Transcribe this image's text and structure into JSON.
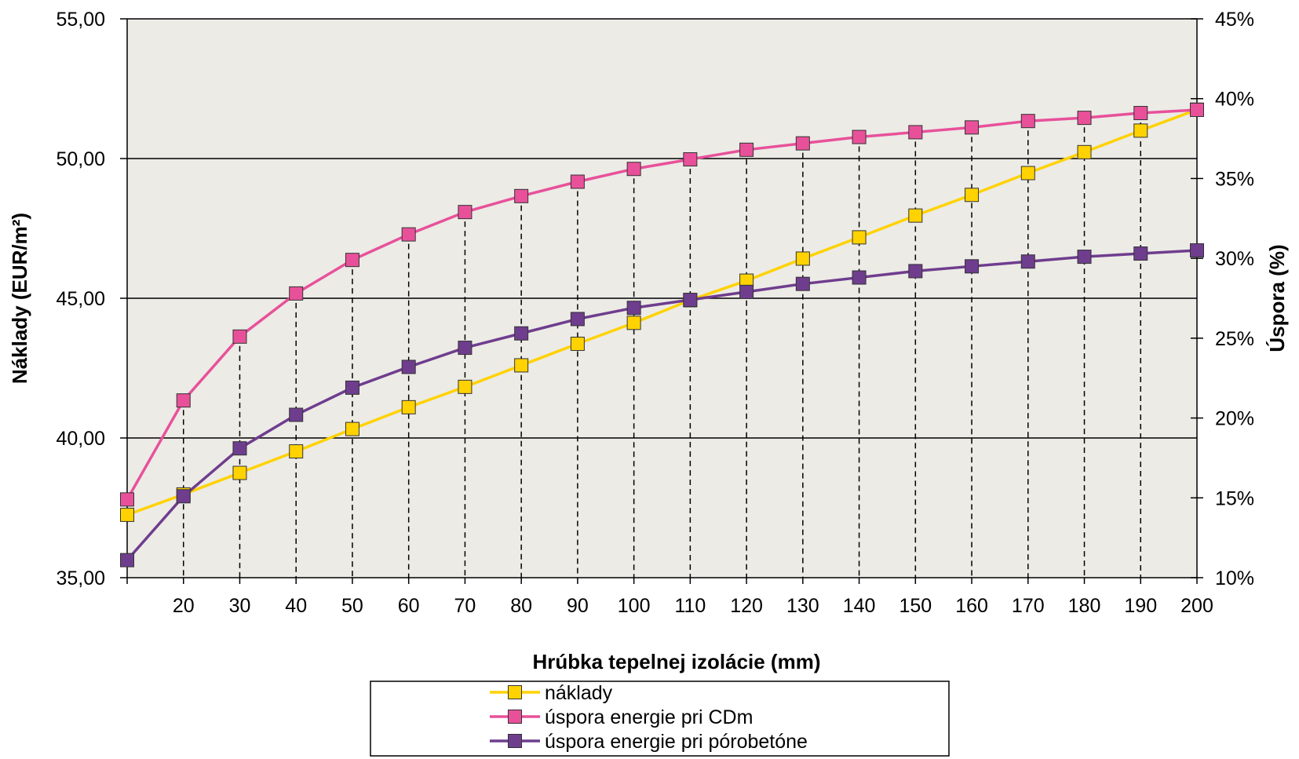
{
  "chart_data": {
    "type": "line",
    "xlabel": "Hrúbka tepelnej izolácie (mm)",
    "ylabel": "Náklady (EUR/m²)",
    "y2label": "Úspora (%)",
    "x": [
      10,
      20,
      30,
      40,
      50,
      60,
      70,
      80,
      90,
      100,
      110,
      120,
      130,
      140,
      150,
      160,
      170,
      180,
      190,
      200
    ],
    "x_tick_labels": [
      "20",
      "30",
      "40",
      "50",
      "60",
      "70",
      "80",
      "90",
      "100",
      "110",
      "120",
      "130",
      "140",
      "150",
      "160",
      "170",
      "180",
      "190",
      "200"
    ],
    "ylim": [
      35,
      55
    ],
    "y_ticks": [
      "35,00",
      "40,00",
      "45,00",
      "50,00",
      "55,00"
    ],
    "y_tick_values": [
      35,
      40,
      45,
      50,
      55
    ],
    "y2lim": [
      10,
      45
    ],
    "y2_ticks": [
      "10%",
      "15%",
      "20%",
      "25%",
      "30%",
      "35%",
      "40%",
      "45%"
    ],
    "y2_tick_values": [
      10,
      15,
      20,
      25,
      30,
      35,
      40,
      45
    ],
    "grid": "horizontal major lines, dashed vertical drop lines",
    "legend_position": "bottom",
    "series": [
      {
        "name": "náklady",
        "axis": "left",
        "color": "#FFD200",
        "values": [
          37.25,
          37.98,
          38.75,
          39.52,
          40.32,
          41.1,
          41.83,
          42.6,
          43.37,
          44.12,
          44.93,
          45.63,
          46.42,
          47.18,
          47.96,
          48.7,
          49.48,
          50.23,
          51.0,
          51.75
        ]
      },
      {
        "name": "úspora energie pri CDm",
        "axis": "right",
        "color": "#E8519A",
        "values": [
          14.9,
          21.1,
          25.1,
          27.8,
          29.9,
          31.5,
          32.9,
          33.9,
          34.8,
          35.6,
          36.2,
          36.8,
          37.2,
          37.6,
          37.9,
          38.2,
          38.6,
          38.8,
          39.1,
          39.3
        ]
      },
      {
        "name": "úspora energie pri pórobetóne",
        "axis": "right",
        "color": "#6F3D8E",
        "values": [
          11.1,
          15.1,
          18.1,
          20.2,
          21.9,
          23.2,
          24.4,
          25.3,
          26.2,
          26.9,
          27.4,
          27.9,
          28.4,
          28.8,
          29.2,
          29.5,
          29.8,
          30.1,
          30.3,
          30.5
        ]
      }
    ]
  }
}
